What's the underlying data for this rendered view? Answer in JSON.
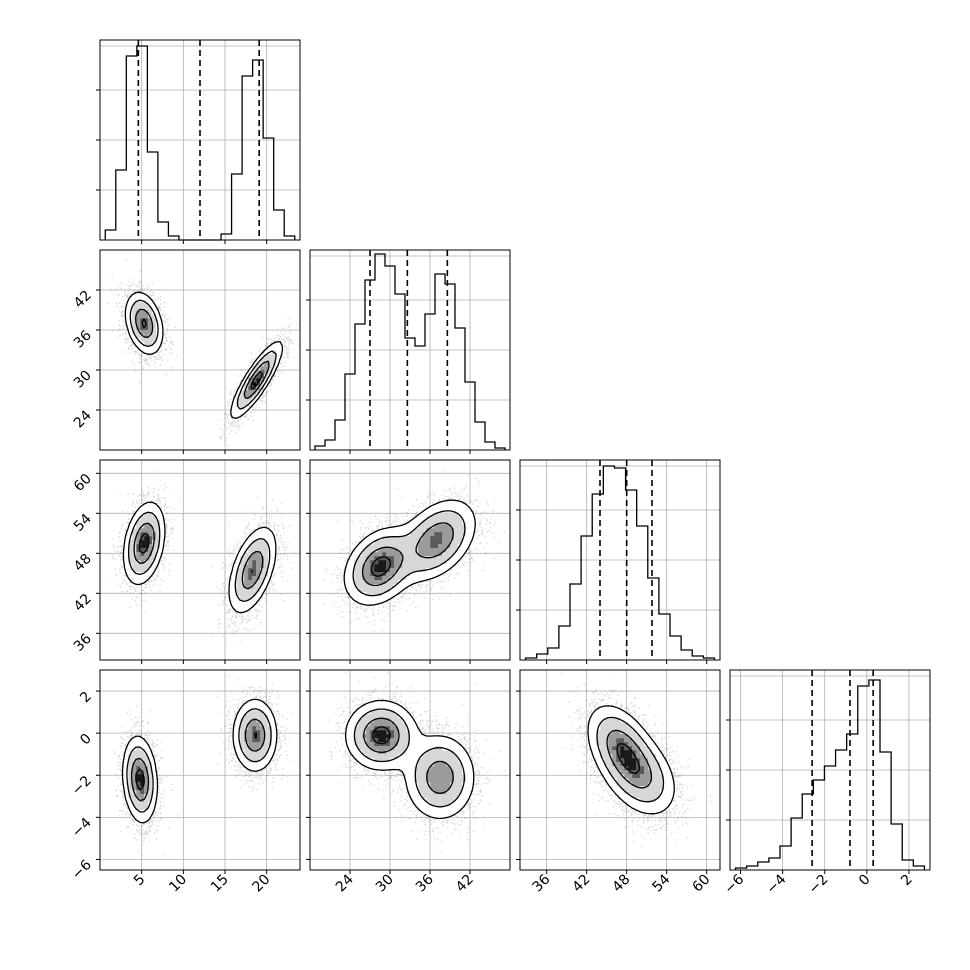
{
  "chart_data": {
    "type": "scatter",
    "title": "",
    "colors": {
      "ink": "#000000",
      "grid": "#b0b0b0",
      "points": "#7f7f7f",
      "background": "#ffffff"
    },
    "parameters": [
      {
        "range": [
          0,
          24
        ],
        "ticks": [
          "5",
          "10",
          "15",
          "20"
        ],
        "tick_values": [
          5,
          10,
          15,
          20
        ],
        "quantiles": [
          4.6,
          12.0,
          19.1
        ],
        "hist": [
          0.05,
          0.35,
          0.92,
          0.97,
          0.44,
          0.09,
          0.02,
          0,
          0,
          0,
          0,
          0.03,
          0.33,
          0.82,
          0.9,
          0.51,
          0.15,
          0.02
        ]
      },
      {
        "range": [
          18,
          48
        ],
        "ticks": [
          "24",
          "30",
          "36",
          "42"
        ],
        "tick_values": [
          24,
          30,
          36,
          42
        ],
        "quantiles": [
          27.0,
          32.6,
          38.6
        ],
        "hist": [
          0.02,
          0.05,
          0.15,
          0.38,
          0.63,
          0.85,
          0.98,
          0.92,
          0.78,
          0.56,
          0.52,
          0.68,
          0.88,
          0.83,
          0.61,
          0.34,
          0.14,
          0.04,
          0.01
        ]
      },
      {
        "range": [
          32,
          62
        ],
        "ticks": [
          "36",
          "42",
          "48",
          "54",
          "60"
        ],
        "tick_values": [
          36,
          42,
          48,
          54,
          60
        ],
        "quantiles": [
          44.0,
          48.0,
          51.8
        ],
        "hist": [
          0.01,
          0.03,
          0.06,
          0.17,
          0.38,
          0.62,
          0.83,
          0.97,
          0.96,
          0.85,
          0.67,
          0.41,
          0.23,
          0.12,
          0.05,
          0.02,
          0.01
        ]
      },
      {
        "range": [
          -6.5,
          3
        ],
        "ticks": [
          "−6",
          "−4",
          "−2",
          "0",
          "2"
        ],
        "tick_values": [
          -6,
          -4,
          -2,
          0,
          2
        ],
        "quantiles": [
          -2.6,
          -0.8,
          0.3
        ],
        "hist": [
          0.01,
          0.02,
          0.04,
          0.06,
          0.12,
          0.26,
          0.38,
          0.45,
          0.52,
          0.6,
          0.68,
          0.92,
          0.95,
          0.59,
          0.23,
          0.05,
          0.02
        ]
      }
    ],
    "scatter_panels": [
      {
        "row": 1,
        "col": 0,
        "clusters": [
          {
            "mx": 5.3,
            "my": 37.0,
            "sx": 1.1,
            "sy": 2.3,
            "rho": -0.3,
            "w": 0.5
          },
          {
            "mx": 18.8,
            "my": 28.5,
            "sx": 1.5,
            "sy": 2.8,
            "rho": 0.85,
            "w": 0.5
          }
        ]
      },
      {
        "row": 2,
        "col": 0,
        "clusters": [
          {
            "mx": 5.3,
            "my": 49.5,
            "sx": 1.2,
            "sy": 3.0,
            "rho": 0.3,
            "w": 0.5
          },
          {
            "mx": 18.3,
            "my": 45.5,
            "sx": 1.4,
            "sy": 3.2,
            "rho": 0.5,
            "w": 0.5
          }
        ]
      },
      {
        "row": 2,
        "col": 1,
        "clusters": [
          {
            "mx": 28.5,
            "my": 46.0,
            "sx": 2.6,
            "sy": 2.8,
            "rho": 0.3,
            "w": 0.5
          },
          {
            "mx": 37.0,
            "my": 50.0,
            "sx": 2.9,
            "sy": 3.0,
            "rho": 0.4,
            "w": 0.5
          }
        ]
      },
      {
        "row": 3,
        "col": 0,
        "clusters": [
          {
            "mx": 4.8,
            "my": -2.2,
            "sx": 1.0,
            "sy": 1.0,
            "rho": -0.15,
            "w": 0.5
          },
          {
            "mx": 18.6,
            "my": -0.1,
            "sx": 1.3,
            "sy": 0.85,
            "rho": 0.0,
            "w": 0.5
          }
        ]
      },
      {
        "row": 3,
        "col": 1,
        "clusters": [
          {
            "mx": 28.7,
            "my": -0.1,
            "sx": 2.6,
            "sy": 0.8,
            "rho": 0.0,
            "w": 0.5
          },
          {
            "mx": 37.5,
            "my": -2.1,
            "sx": 2.6,
            "sy": 1.0,
            "rho": 0.0,
            "w": 0.5
          }
        ]
      },
      {
        "row": 3,
        "col": 2,
        "clusters": [
          {
            "mx": 47.0,
            "my": -0.6,
            "sx": 2.5,
            "sy": 1.0,
            "rho": -0.4,
            "w": 0.5
          },
          {
            "mx": 50.0,
            "my": -2.0,
            "sx": 2.8,
            "sy": 1.0,
            "rho": -0.35,
            "w": 0.5
          }
        ]
      }
    ],
    "contour_levels": [
      0.88,
      0.6,
      0.3,
      0.12
    ],
    "legend": "none",
    "grid": true
  }
}
